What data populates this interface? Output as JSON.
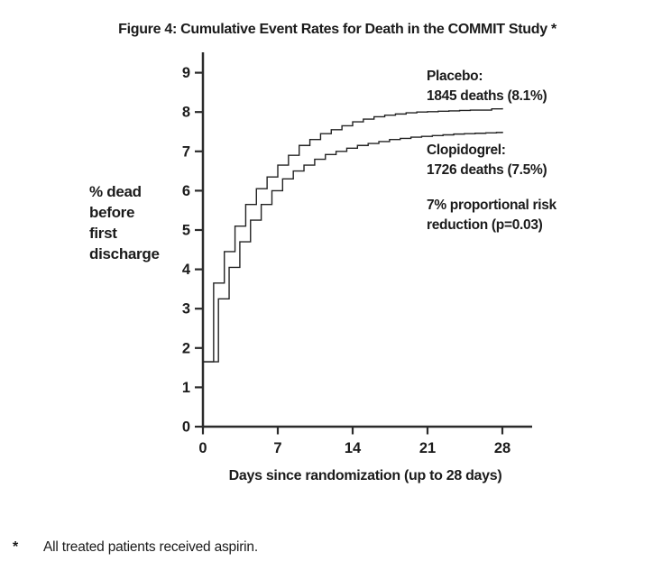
{
  "figure": {
    "title": "Figure 4: Cumulative Event Rates for Death in the COMMIT Study *",
    "footnote_marker": "*",
    "footnote_text": "All treated patients received aspirin."
  },
  "chart_data": {
    "type": "line",
    "subtype": "step",
    "title": "Figure 4: Cumulative Event Rates for Death in the COMMIT Study *",
    "xlabel": "Days since randomization (up to 28 days)",
    "ylabel": "% dead before first discharge",
    "ylabel_lines": [
      "% dead",
      "before",
      "first",
      "discharge"
    ],
    "xlim": [
      0,
      28
    ],
    "ylim": [
      0,
      9
    ],
    "x_ticks": [
      0,
      7,
      14,
      21,
      28
    ],
    "y_ticks": [
      0,
      1,
      2,
      3,
      4,
      5,
      6,
      7,
      8,
      9
    ],
    "grid": false,
    "legend_position": "inside-right",
    "line_color": "#222222",
    "axis_color": "#2b2b2b",
    "background": "#ffffff",
    "x": [
      0,
      1,
      2,
      3,
      4,
      5,
      6,
      7,
      8,
      9,
      10,
      11,
      12,
      13,
      14,
      15,
      16,
      17,
      18,
      19,
      20,
      21,
      22,
      23,
      24,
      25,
      26,
      27,
      28
    ],
    "series": [
      {
        "name": "Placebo",
        "label_lines": [
          "Placebo:",
          "1845 deaths (8.1%)"
        ],
        "deaths": 1845,
        "final_rate_pct": 8.1,
        "step_offset_days": 0,
        "values": [
          1.65,
          3.65,
          4.45,
          5.1,
          5.65,
          6.05,
          6.35,
          6.65,
          6.9,
          7.15,
          7.3,
          7.45,
          7.55,
          7.65,
          7.75,
          7.82,
          7.88,
          7.92,
          7.95,
          7.98,
          8.0,
          8.01,
          8.02,
          8.03,
          8.04,
          8.05,
          8.05,
          8.08,
          8.1
        ]
      },
      {
        "name": "Clopidogrel",
        "label_lines": [
          "Clopidogrel:",
          "1726 deaths (7.5%)"
        ],
        "deaths": 1726,
        "final_rate_pct": 7.5,
        "step_offset_days": 0.45,
        "values": [
          1.65,
          3.25,
          4.05,
          4.7,
          5.25,
          5.65,
          6.0,
          6.3,
          6.5,
          6.65,
          6.8,
          6.92,
          7.0,
          7.08,
          7.15,
          7.2,
          7.25,
          7.3,
          7.33,
          7.36,
          7.38,
          7.4,
          7.42,
          7.44,
          7.45,
          7.46,
          7.47,
          7.48,
          7.5
        ]
      }
    ],
    "annotations": [
      {
        "lines": [
          "7% proportional risk",
          "reduction (p=0.03)"
        ]
      }
    ]
  }
}
